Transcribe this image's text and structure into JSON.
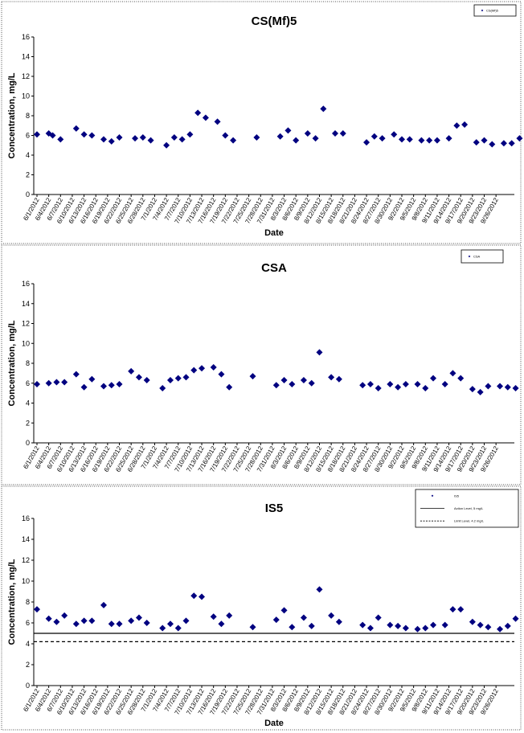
{
  "chart_data": [
    {
      "type": "scatter",
      "title": "CS(Mf)5",
      "xlabel": "Date",
      "ylabel": "Concentration, mg/L",
      "ylim": [
        0,
        16
      ],
      "yticks": [
        "0",
        "2",
        "4",
        "6",
        "8",
        "10",
        "12",
        "14",
        "16"
      ],
      "xticks": [
        "6/1/2012",
        "6/4/2012",
        "6/7/2012",
        "6/10/2012",
        "6/13/2012",
        "6/16/2012",
        "6/19/2012",
        "6/22/2012",
        "6/25/2012",
        "6/28/2012",
        "7/1/2012",
        "7/4/2012",
        "7/7/2012",
        "7/10/2012",
        "7/13/2012",
        "7/16/2012",
        "7/19/2012",
        "7/22/2012",
        "7/25/2012",
        "7/28/2012",
        "7/31/2012",
        "8/3/2012",
        "8/6/2012",
        "8/9/2012",
        "8/12/2012",
        "8/15/2012",
        "8/18/2012",
        "8/21/2012",
        "8/24/2012",
        "8/27/2012",
        "8/30/2012",
        "9/2/2012",
        "9/5/2012",
        "9/8/2012",
        "9/11/2012",
        "9/14/2012",
        "9/17/2012",
        "9/20/2012",
        "9/23/2012",
        "9/26/2012"
      ],
      "legend": [
        {
          "label": "CS(Mf)5",
          "style": "marker"
        }
      ],
      "legend_position": "top-right",
      "grid": false,
      "series": [
        {
          "marker": "diamond",
          "color": "#000080",
          "points": [
            {
              "x": "6/1/2012",
              "y": 6.1
            },
            {
              "x": "6/4/2012",
              "y": 6.2
            },
            {
              "x": "6/5/2012",
              "y": 6.0
            },
            {
              "x": "6/7/2012",
              "y": 5.6
            },
            {
              "x": "6/11/2012",
              "y": 6.7
            },
            {
              "x": "6/13/2012",
              "y": 6.1
            },
            {
              "x": "6/15/2012",
              "y": 6.0
            },
            {
              "x": "6/18/2012",
              "y": 5.6
            },
            {
              "x": "6/20/2012",
              "y": 5.4
            },
            {
              "x": "6/22/2012",
              "y": 5.8
            },
            {
              "x": "6/26/2012",
              "y": 5.7
            },
            {
              "x": "6/28/2012",
              "y": 5.8
            },
            {
              "x": "6/30/2012",
              "y": 5.5
            },
            {
              "x": "7/4/2012",
              "y": 5.0
            },
            {
              "x": "7/6/2012",
              "y": 5.8
            },
            {
              "x": "7/8/2012",
              "y": 5.6
            },
            {
              "x": "7/10/2012",
              "y": 6.1
            },
            {
              "x": "7/12/2012",
              "y": 8.3
            },
            {
              "x": "7/14/2012",
              "y": 7.8
            },
            {
              "x": "7/17/2012",
              "y": 7.4
            },
            {
              "x": "7/19/2012",
              "y": 6.0
            },
            {
              "x": "7/21/2012",
              "y": 5.5
            },
            {
              "x": "7/27/2012",
              "y": 5.8
            },
            {
              "x": "8/2/2012",
              "y": 5.9
            },
            {
              "x": "8/4/2012",
              "y": 6.5
            },
            {
              "x": "8/6/2012",
              "y": 5.5
            },
            {
              "x": "8/9/2012",
              "y": 6.2
            },
            {
              "x": "8/11/2012",
              "y": 5.7
            },
            {
              "x": "8/13/2012",
              "y": 8.7
            },
            {
              "x": "8/16/2012",
              "y": 6.2
            },
            {
              "x": "8/18/2012",
              "y": 6.2
            },
            {
              "x": "8/24/2012",
              "y": 5.3
            },
            {
              "x": "8/26/2012",
              "y": 5.9
            },
            {
              "x": "8/28/2012",
              "y": 5.7
            },
            {
              "x": "8/31/2012",
              "y": 6.1
            },
            {
              "x": "9/2/2012",
              "y": 5.6
            },
            {
              "x": "9/4/2012",
              "y": 5.6
            },
            {
              "x": "9/7/2012",
              "y": 5.5
            },
            {
              "x": "9/9/2012",
              "y": 5.5
            },
            {
              "x": "9/11/2012",
              "y": 5.5
            },
            {
              "x": "9/14/2012",
              "y": 5.7
            },
            {
              "x": "9/16/2012",
              "y": 7.0
            },
            {
              "x": "9/18/2012",
              "y": 7.1
            },
            {
              "x": "9/21/2012",
              "y": 5.3
            },
            {
              "x": "9/23/2012",
              "y": 5.5
            },
            {
              "x": "9/25/2012",
              "y": 5.1
            },
            {
              "x": "9/28/2012",
              "y": 5.2
            },
            {
              "x": "9/30/2012",
              "y": 5.2
            },
            {
              "x": "10/2/2012",
              "y": 5.7
            }
          ]
        }
      ]
    },
    {
      "type": "scatter",
      "title": "CSA",
      "xlabel": "",
      "ylabel": "Concentration, mg/L",
      "ylim": [
        0,
        16
      ],
      "yticks": [
        "0",
        "2",
        "4",
        "6",
        "8",
        "10",
        "12",
        "14",
        "16"
      ],
      "xticks": [
        "6/1/2012",
        "6/4/2012",
        "6/7/2012",
        "6/10/2012",
        "6/13/2012",
        "6/16/2012",
        "6/19/2012",
        "6/22/2012",
        "6/25/2012",
        "6/28/2012",
        "7/1/2012",
        "7/4/2012",
        "7/7/2012",
        "7/10/2012",
        "7/13/2012",
        "7/16/2012",
        "7/19/2012",
        "7/22/2012",
        "7/25/2012",
        "7/28/2012",
        "7/31/2012",
        "8/3/2012",
        "8/6/2012",
        "8/9/2012",
        "8/12/2012",
        "8/15/2012",
        "8/18/2012",
        "8/21/2012",
        "8/24/2012",
        "8/27/2012",
        "8/30/2012",
        "9/2/2012",
        "9/5/2012",
        "9/8/2012",
        "9/11/2012",
        "9/14/2012",
        "9/17/2012",
        "9/20/2012",
        "9/23/2012",
        "9/26/2012"
      ],
      "legend": [
        {
          "label": "CSA",
          "style": "marker"
        }
      ],
      "legend_position": "top-right",
      "grid": false,
      "series": [
        {
          "marker": "diamond",
          "color": "#000080",
          "points": [
            {
              "x": "6/1/2012",
              "y": 5.9
            },
            {
              "x": "6/4/2012",
              "y": 6.0
            },
            {
              "x": "6/6/2012",
              "y": 6.1
            },
            {
              "x": "6/8/2012",
              "y": 6.1
            },
            {
              "x": "6/11/2012",
              "y": 6.9
            },
            {
              "x": "6/13/2012",
              "y": 5.6
            },
            {
              "x": "6/15/2012",
              "y": 6.4
            },
            {
              "x": "6/18/2012",
              "y": 5.7
            },
            {
              "x": "6/20/2012",
              "y": 5.8
            },
            {
              "x": "6/22/2012",
              "y": 5.9
            },
            {
              "x": "6/25/2012",
              "y": 7.2
            },
            {
              "x": "6/27/2012",
              "y": 6.6
            },
            {
              "x": "6/29/2012",
              "y": 6.3
            },
            {
              "x": "7/3/2012",
              "y": 5.5
            },
            {
              "x": "7/5/2012",
              "y": 6.3
            },
            {
              "x": "7/7/2012",
              "y": 6.5
            },
            {
              "x": "7/9/2012",
              "y": 6.6
            },
            {
              "x": "7/11/2012",
              "y": 7.3
            },
            {
              "x": "7/13/2012",
              "y": 7.5
            },
            {
              "x": "7/16/2012",
              "y": 7.6
            },
            {
              "x": "7/18/2012",
              "y": 6.9
            },
            {
              "x": "7/20/2012",
              "y": 5.6
            },
            {
              "x": "7/26/2012",
              "y": 6.7
            },
            {
              "x": "8/1/2012",
              "y": 5.8
            },
            {
              "x": "8/3/2012",
              "y": 6.3
            },
            {
              "x": "8/5/2012",
              "y": 5.9
            },
            {
              "x": "8/8/2012",
              "y": 6.3
            },
            {
              "x": "8/10/2012",
              "y": 6.0
            },
            {
              "x": "8/12/2012",
              "y": 9.1
            },
            {
              "x": "8/15/2012",
              "y": 6.6
            },
            {
              "x": "8/17/2012",
              "y": 6.4
            },
            {
              "x": "8/23/2012",
              "y": 5.8
            },
            {
              "x": "8/25/2012",
              "y": 5.9
            },
            {
              "x": "8/27/2012",
              "y": 5.5
            },
            {
              "x": "8/30/2012",
              "y": 5.9
            },
            {
              "x": "9/1/2012",
              "y": 5.6
            },
            {
              "x": "9/3/2012",
              "y": 5.9
            },
            {
              "x": "9/6/2012",
              "y": 5.9
            },
            {
              "x": "9/8/2012",
              "y": 5.5
            },
            {
              "x": "9/10/2012",
              "y": 6.5
            },
            {
              "x": "9/13/2012",
              "y": 5.9
            },
            {
              "x": "9/15/2012",
              "y": 7.0
            },
            {
              "x": "9/17/2012",
              "y": 6.5
            },
            {
              "x": "9/20/2012",
              "y": 5.4
            },
            {
              "x": "9/22/2012",
              "y": 5.1
            },
            {
              "x": "9/24/2012",
              "y": 5.7
            },
            {
              "x": "9/27/2012",
              "y": 5.7
            },
            {
              "x": "9/29/2012",
              "y": 5.6
            },
            {
              "x": "10/1/2012",
              "y": 5.5
            }
          ]
        }
      ]
    },
    {
      "type": "scatter",
      "title": "IS5",
      "xlabel": "Date",
      "ylabel": "Concentration, mg/L",
      "ylim": [
        0,
        16
      ],
      "yticks": [
        "0",
        "2",
        "4",
        "6",
        "8",
        "10",
        "12",
        "14",
        "16"
      ],
      "xticks": [
        "6/1/2012",
        "6/4/2012",
        "6/7/2012",
        "6/10/2012",
        "6/13/2012",
        "6/16/2012",
        "6/19/2012",
        "6/22/2012",
        "6/25/2012",
        "6/28/2012",
        "7/1/2012",
        "7/4/2012",
        "7/7/2012",
        "7/10/2012",
        "7/13/2012",
        "7/16/2012",
        "7/19/2012",
        "7/22/2012",
        "7/25/2012",
        "7/28/2012",
        "7/31/2012",
        "8/3/2012",
        "8/6/2012",
        "8/9/2012",
        "8/12/2012",
        "8/15/2012",
        "8/18/2012",
        "8/21/2012",
        "8/24/2012",
        "8/27/2012",
        "8/30/2012",
        "9/2/2012",
        "9/5/2012",
        "9/8/2012",
        "9/11/2012",
        "9/14/2012",
        "9/17/2012",
        "9/20/2012",
        "9/23/2012",
        "9/26/2012"
      ],
      "legend": [
        {
          "label": "IS5",
          "style": "marker"
        },
        {
          "label": "Action Level, 5 mg/L",
          "style": "solid"
        },
        {
          "label": "Limit Level, 4.2 mg/L",
          "style": "dashed"
        }
      ],
      "legend_position": "top-right",
      "grid": false,
      "reference_lines": [
        {
          "y": 5.0,
          "style": "solid"
        },
        {
          "y": 4.2,
          "style": "dashed"
        }
      ],
      "series": [
        {
          "marker": "diamond",
          "color": "#000080",
          "points": [
            {
              "x": "6/1/2012",
              "y": 7.3
            },
            {
              "x": "6/4/2012",
              "y": 6.4
            },
            {
              "x": "6/6/2012",
              "y": 6.1
            },
            {
              "x": "6/8/2012",
              "y": 6.7
            },
            {
              "x": "6/11/2012",
              "y": 5.9
            },
            {
              "x": "6/13/2012",
              "y": 6.2
            },
            {
              "x": "6/15/2012",
              "y": 6.2
            },
            {
              "x": "6/18/2012",
              "y": 7.7
            },
            {
              "x": "6/20/2012",
              "y": 5.9
            },
            {
              "x": "6/22/2012",
              "y": 5.9
            },
            {
              "x": "6/25/2012",
              "y": 6.2
            },
            {
              "x": "6/27/2012",
              "y": 6.5
            },
            {
              "x": "6/29/2012",
              "y": 6.0
            },
            {
              "x": "7/3/2012",
              "y": 5.5
            },
            {
              "x": "7/5/2012",
              "y": 5.9
            },
            {
              "x": "7/7/2012",
              "y": 5.5
            },
            {
              "x": "7/9/2012",
              "y": 6.2
            },
            {
              "x": "7/11/2012",
              "y": 8.6
            },
            {
              "x": "7/13/2012",
              "y": 8.5
            },
            {
              "x": "7/16/2012",
              "y": 6.6
            },
            {
              "x": "7/18/2012",
              "y": 5.9
            },
            {
              "x": "7/20/2012",
              "y": 6.7
            },
            {
              "x": "7/26/2012",
              "y": 5.6
            },
            {
              "x": "8/1/2012",
              "y": 6.3
            },
            {
              "x": "8/3/2012",
              "y": 7.2
            },
            {
              "x": "8/5/2012",
              "y": 5.6
            },
            {
              "x": "8/8/2012",
              "y": 6.5
            },
            {
              "x": "8/10/2012",
              "y": 5.7
            },
            {
              "x": "8/12/2012",
              "y": 9.2
            },
            {
              "x": "8/15/2012",
              "y": 6.7
            },
            {
              "x": "8/17/2012",
              "y": 6.1
            },
            {
              "x": "8/23/2012",
              "y": 5.8
            },
            {
              "x": "8/25/2012",
              "y": 5.5
            },
            {
              "x": "8/27/2012",
              "y": 6.5
            },
            {
              "x": "8/30/2012",
              "y": 5.8
            },
            {
              "x": "9/1/2012",
              "y": 5.7
            },
            {
              "x": "9/3/2012",
              "y": 5.5
            },
            {
              "x": "9/6/2012",
              "y": 5.4
            },
            {
              "x": "9/8/2012",
              "y": 5.5
            },
            {
              "x": "9/10/2012",
              "y": 5.8
            },
            {
              "x": "9/13/2012",
              "y": 5.8
            },
            {
              "x": "9/15/2012",
              "y": 7.3
            },
            {
              "x": "9/17/2012",
              "y": 7.3
            },
            {
              "x": "9/20/2012",
              "y": 6.1
            },
            {
              "x": "9/22/2012",
              "y": 5.8
            },
            {
              "x": "9/24/2012",
              "y": 5.6
            },
            {
              "x": "9/27/2012",
              "y": 5.4
            },
            {
              "x": "9/29/2012",
              "y": 5.7
            },
            {
              "x": "10/1/2012",
              "y": 6.4
            }
          ]
        }
      ]
    }
  ]
}
